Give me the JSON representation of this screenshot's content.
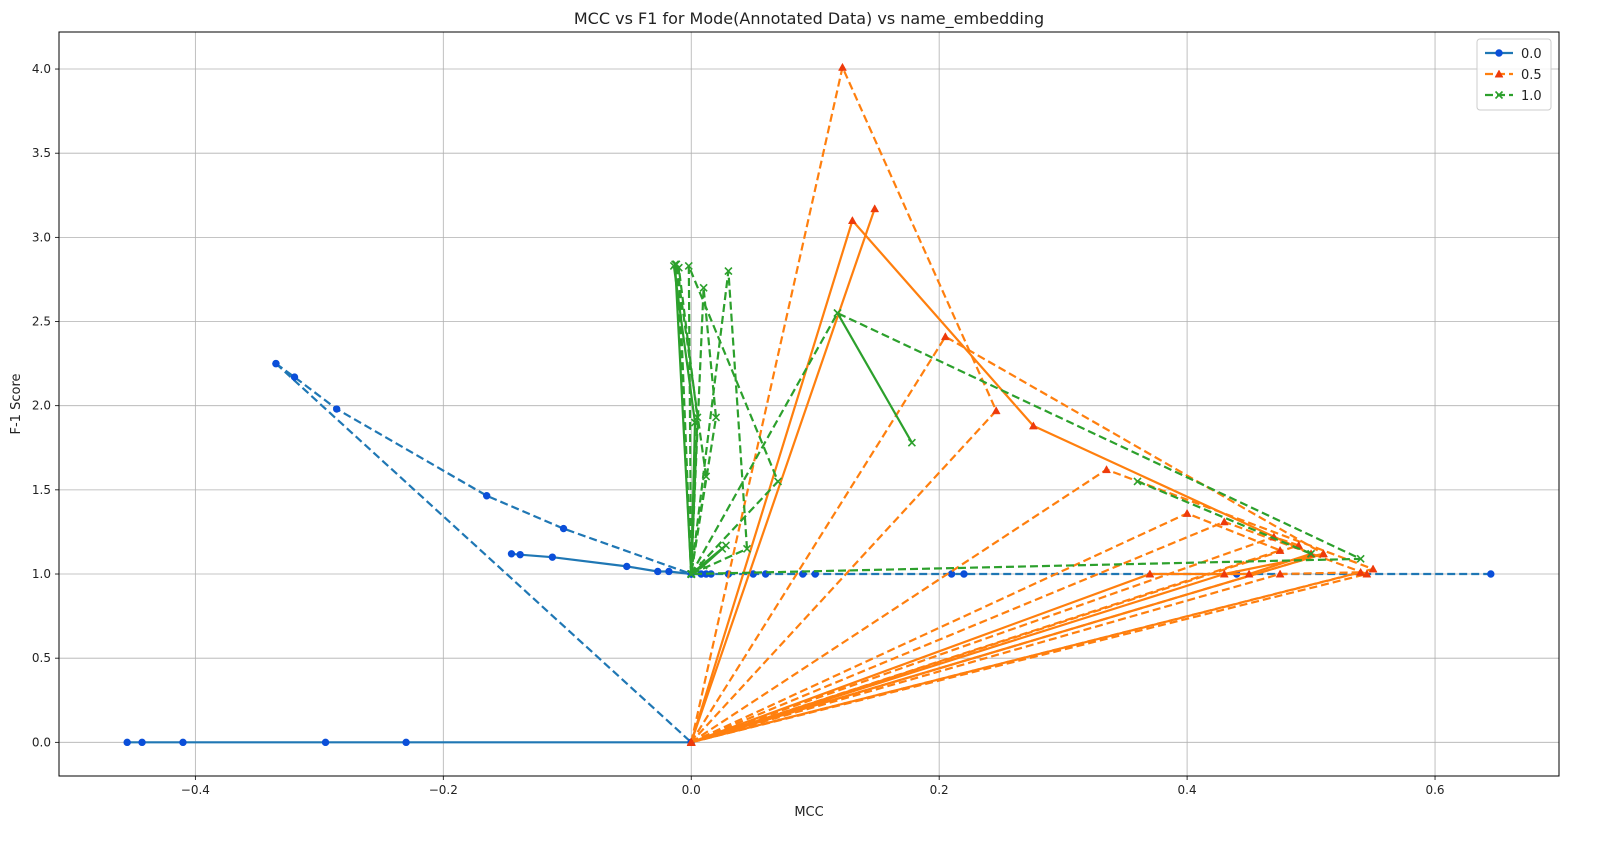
{
  "chart_data": {
    "type": "line",
    "title": "MCC vs F1 for Mode(Annotated Data) vs  name_embedding",
    "xlabel": "MCC",
    "ylabel": "F-1 Score",
    "xlim": [
      -0.51,
      0.7
    ],
    "ylim": [
      -0.2,
      4.22
    ],
    "x_ticks": [
      -0.4,
      -0.2,
      0.0,
      0.2,
      0.4,
      0.6
    ],
    "x_tick_labels": [
      "−0.4",
      "−0.2",
      "0.0",
      "0.2",
      "0.4",
      "0.6"
    ],
    "y_ticks": [
      0.0,
      0.5,
      1.0,
      1.5,
      2.0,
      2.5,
      3.0,
      3.5,
      4.0
    ],
    "y_tick_labels": [
      "0.0",
      "0.5",
      "1.0",
      "1.5",
      "2.0",
      "2.5",
      "3.0",
      "3.5",
      "4.0"
    ],
    "grid": true,
    "legend_position": "top-right",
    "series": [
      {
        "name": "0.0",
        "color": "#1f77b4",
        "marker": "circle",
        "marker_color": "#0b4fd9",
        "segments": [
          {
            "style": "solid",
            "x": [
              -0.455,
              -0.443,
              -0.41,
              -0.295,
              -0.23,
              0.0
            ],
            "y": [
              0.0,
              0.0,
              0.0,
              0.0,
              0.0,
              0.0
            ]
          },
          {
            "style": "solid",
            "x": [
              -0.145,
              -0.138,
              -0.112,
              -0.052,
              -0.027,
              -0.018,
              0.0,
              0.008,
              0.012,
              0.016
            ],
            "y": [
              1.12,
              1.115,
              1.1,
              1.045,
              1.015,
              1.015,
              1.0,
              1.0,
              1.0,
              1.0
            ]
          },
          {
            "style": "dashed",
            "x": [
              -0.335,
              -0.32,
              -0.286,
              -0.165,
              -0.103,
              0.0
            ],
            "y": [
              2.25,
              2.17,
              1.98,
              1.465,
              1.27,
              1.0
            ]
          },
          {
            "style": "dashed",
            "x": [
              -0.335,
              0.0
            ],
            "y": [
              2.25,
              0.0
            ]
          },
          {
            "style": "dashed",
            "x": [
              0.0,
              0.03,
              0.05,
              0.06,
              0.09,
              0.1,
              0.21,
              0.22,
              0.44,
              0.645
            ],
            "y": [
              1.0,
              1.0,
              1.0,
              1.0,
              1.0,
              1.0,
              1.0,
              1.0,
              1.0,
              1.0
            ]
          }
        ]
      },
      {
        "name": "0.5",
        "color": "#ff7f0e",
        "marker": "triangle",
        "marker_color": "#ee3a0a",
        "segments": [
          {
            "style": "solid",
            "x": [
              0.0,
              0.13,
              0.276,
              0.5,
              0.45,
              0.37,
              0.0
            ],
            "y": [
              0.0,
              3.1,
              1.88,
              1.12,
              1.0,
              1.0,
              0.0
            ]
          },
          {
            "style": "solid",
            "x": [
              0.0,
              0.148
            ],
            "y": [
              0.0,
              3.17
            ]
          },
          {
            "style": "solid",
            "x": [
              0.0,
              0.43,
              0.51,
              0.0
            ],
            "y": [
              0.0,
              1.0,
              1.12,
              0.0
            ]
          },
          {
            "style": "dashed",
            "x": [
              0.0,
              0.122,
              0.246,
              0.0
            ],
            "y": [
              0.0,
              4.01,
              1.97,
              0.0
            ]
          },
          {
            "style": "dashed",
            "x": [
              0.0,
              0.205,
              0.51,
              0.0
            ],
            "y": [
              0.0,
              2.41,
              1.12,
              0.0
            ]
          },
          {
            "style": "dashed",
            "x": [
              0.0,
              0.335,
              0.55,
              0.0
            ],
            "y": [
              0.0,
              1.62,
              1.03,
              0.0
            ]
          },
          {
            "style": "dashed",
            "x": [
              0.0,
              0.4,
              0.475,
              0.0
            ],
            "y": [
              0.0,
              1.36,
              1.14,
              0.0
            ]
          },
          {
            "style": "dashed",
            "x": [
              0.0,
              0.47,
              0.49,
              0.0
            ],
            "y": [
              0.0,
              1.22,
              1.17,
              0.0
            ]
          },
          {
            "style": "dashed",
            "x": [
              0.0,
              0.43,
              0.545,
              0.0
            ],
            "y": [
              0.0,
              1.31,
              1.0,
              0.0
            ]
          },
          {
            "style": "dashed",
            "x": [
              0.0,
              0.475,
              0.54,
              0.0
            ],
            "y": [
              0.0,
              1.0,
              1.01,
              0.0
            ]
          }
        ]
      },
      {
        "name": "1.0",
        "color": "#2ca02c",
        "marker": "x",
        "marker_color": "#2ca02c",
        "segments": [
          {
            "style": "solid",
            "x": [
              -0.013,
              0.0,
              0.01,
              0.025,
              0.028,
              0.0
            ],
            "y": [
              2.84,
              1.0,
              1.05,
              1.15,
              1.17,
              1.0
            ]
          },
          {
            "style": "solid",
            "x": [
              -0.014,
              0.003,
              0.0
            ],
            "y": [
              2.83,
              1.9,
              1.0
            ]
          },
          {
            "style": "solid",
            "x": [
              0.118,
              0.178
            ],
            "y": [
              2.55,
              1.78
            ]
          },
          {
            "style": "dashed",
            "x": [
              0.0,
              -0.012,
              0.012,
              0.0
            ],
            "y": [
              1.0,
              2.84,
              1.58,
              1.0
            ]
          },
          {
            "style": "dashed",
            "x": [
              0.0,
              -0.01,
              0.005,
              0.0
            ],
            "y": [
              1.0,
              2.82,
              1.93,
              1.0
            ]
          },
          {
            "style": "dashed",
            "x": [
              0.0,
              -0.002,
              0.07,
              0.0
            ],
            "y": [
              1.0,
              2.83,
              1.55,
              1.0
            ]
          },
          {
            "style": "dashed",
            "x": [
              0.0,
              0.03,
              0.045,
              0.0
            ],
            "y": [
              1.0,
              2.8,
              1.15,
              1.0
            ]
          },
          {
            "style": "dashed",
            "x": [
              0.0,
              0.01,
              0.02,
              0.0
            ],
            "y": [
              1.0,
              2.7,
              1.93,
              1.0
            ]
          },
          {
            "style": "dashed",
            "x": [
              0.0,
              0.118,
              0.54,
              0.0
            ],
            "y": [
              1.0,
              2.55,
              1.09,
              1.0
            ]
          },
          {
            "style": "dashed",
            "x": [
              0.36,
              0.5
            ],
            "y": [
              1.55,
              1.12
            ]
          }
        ]
      }
    ]
  }
}
